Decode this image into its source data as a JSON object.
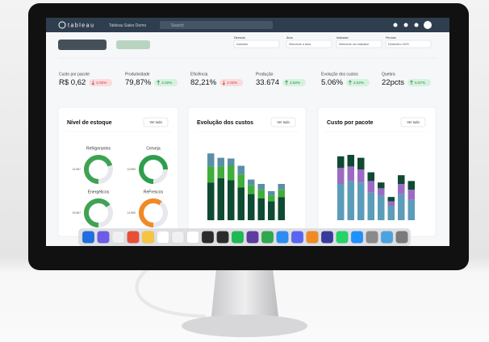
{
  "header": {
    "brand": "tableau",
    "workbook": "Tableau Sales Demo",
    "search": "Search"
  },
  "filters": [
    {
      "label": "Diretoria",
      "value": "Industria"
    },
    {
      "label": "Área",
      "value": "Selecione a área"
    },
    {
      "label": "Indicador",
      "value": "Selecione um indicador"
    },
    {
      "label": "Período",
      "value": "Dezembro 2023"
    }
  ],
  "kpis": [
    {
      "label": "Custo por pacote",
      "value": "R$ 0,62",
      "change": "2.02%",
      "trend": "down"
    },
    {
      "label": "Produtividade",
      "value": "79,87%",
      "change": "2.02%",
      "trend": "up"
    },
    {
      "label": "Eficiência",
      "value": "82,21%",
      "change": "2.02%",
      "trend": "down"
    },
    {
      "label": "Produção",
      "value": "33.674",
      "change": "2.82%",
      "trend": "up"
    },
    {
      "label": "Evolução dos custos",
      "value": "5.06%",
      "change": "2.02%",
      "trend": "up"
    },
    {
      "label": "Quebra",
      "value": "22pcts",
      "change": "0.07%",
      "trend": "up"
    }
  ],
  "stock": {
    "title": "Nível de estoque",
    "action": "Ver tudo",
    "items": [
      {
        "name": "Refrigerantes",
        "label": "14.567",
        "percent": 70,
        "color": "#3fa352"
      },
      {
        "name": "Cerveja",
        "label": "10.890",
        "percent": 75,
        "color": "#2e9e4f"
      },
      {
        "name": "Energéticos",
        "label": "15.567",
        "percent": 65,
        "color": "#3fa352"
      },
      {
        "name": "ReFrescos",
        "label": "12.890",
        "percent": 60,
        "color": "#f08a24"
      }
    ]
  },
  "costs": {
    "title": "Evolução dos custos",
    "action": "Ver tudo",
    "ylim": [
      0,
      100
    ],
    "series": [
      {
        "color": "#0f4a32",
        "values": [
          52,
          58,
          55,
          45,
          36,
          30,
          26,
          32
        ]
      },
      {
        "color": "#3fae3a",
        "values": [
          22,
          16,
          20,
          18,
          12,
          12,
          8,
          10
        ]
      },
      {
        "color": "#5b8fa8",
        "values": [
          18,
          12,
          10,
          12,
          8,
          8,
          6,
          8
        ]
      }
    ]
  },
  "package": {
    "title": "Custo por pacote",
    "action": "Ver tudo",
    "ylim": [
      0,
      100
    ],
    "series": [
      {
        "color": "#5b9db8",
        "values": [
          50,
          54,
          52,
          38,
          34,
          20,
          36,
          28
        ]
      },
      {
        "color": "#9b6bc4",
        "values": [
          22,
          20,
          18,
          16,
          10,
          6,
          14,
          14
        ]
      },
      {
        "color": "#0f4a32",
        "values": [
          16,
          16,
          16,
          12,
          8,
          6,
          12,
          12
        ]
      }
    ]
  }
}
